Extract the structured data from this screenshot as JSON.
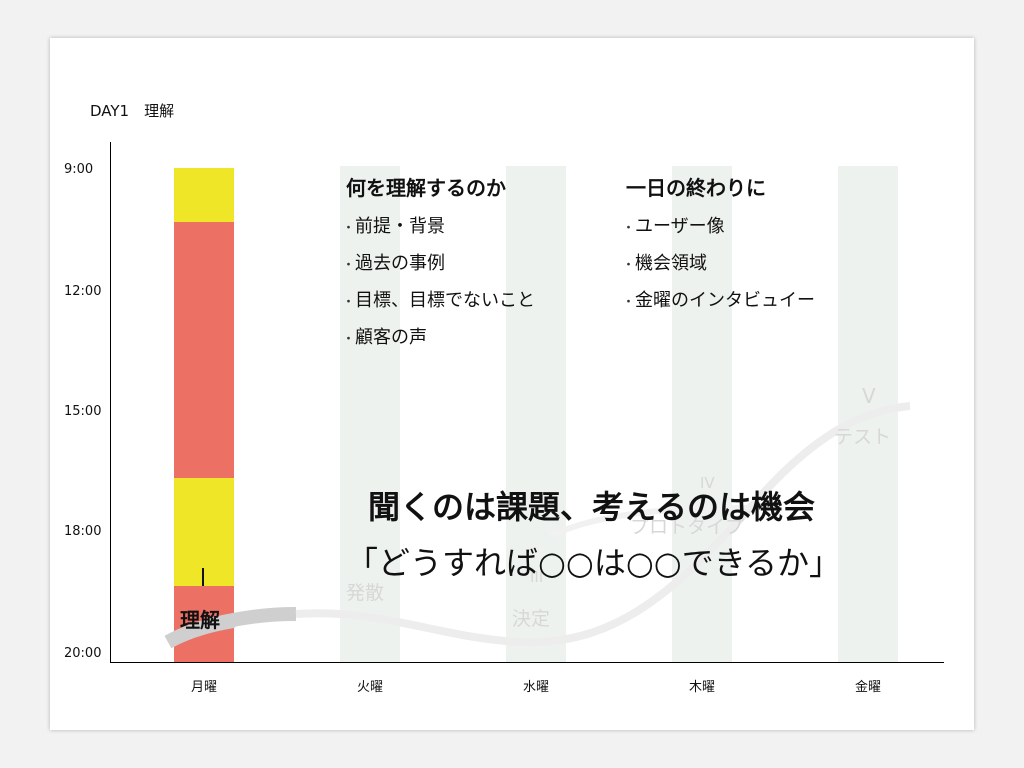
{
  "slide_title": "DAY1　理解",
  "time_labels": [
    "9:00",
    "12:00",
    "15:00",
    "18:00",
    "20:00"
  ],
  "day_labels": [
    "月曜",
    "火曜",
    "水曜",
    "木曜",
    "金曜"
  ],
  "bar_label": "理解",
  "left_list": {
    "heading": "何を理解するのか",
    "items": [
      "前提・背景",
      "過去の事例",
      "目標、目標でないこと",
      "顧客の声"
    ]
  },
  "right_list": {
    "heading": "一日の終わりに",
    "items": [
      "ユーザー像",
      "機会領域",
      "金曜のインタビュイー"
    ]
  },
  "faint_labels": {
    "diverge": "発散",
    "decide_num": "III",
    "decide": "決定",
    "proto_num": "IV",
    "proto": "プロトタイプ",
    "test_num": "V",
    "test": "テスト"
  },
  "headline_1": "聞くのは課題、考えるのは機会",
  "headline_2": "「どうすれば○○は○○できるか」",
  "colors": {
    "accent_red": "#ec7064",
    "accent_yellow": "#f0e628",
    "ghost_column": "#eef2ee",
    "faint_text": "#d7d7d7"
  }
}
